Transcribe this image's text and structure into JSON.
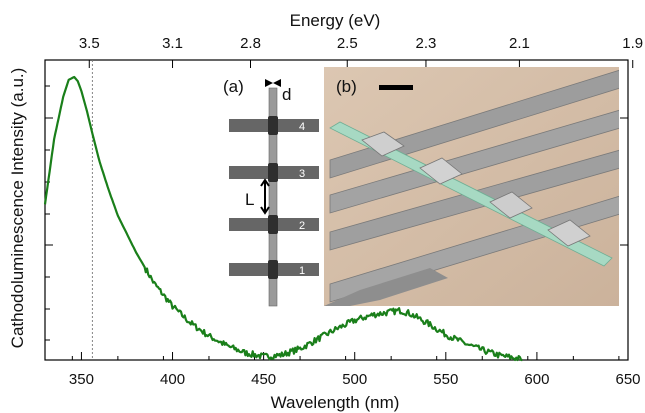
{
  "chart_data": {
    "type": "line",
    "xlabel": "Wavelength (nm)",
    "ylabel": "Cathodoluminescence Intensity (a.u.)",
    "top_axis_label": "Energy (eV)",
    "xlim": [
      330,
      650
    ],
    "ylim": [
      0,
      1.06
    ],
    "x_ticks": [
      350,
      400,
      450,
      500,
      550,
      600,
      650
    ],
    "top_ticks": [
      "3.5",
      "3.1",
      "2.8",
      "2.5",
      "2.3",
      "2.1",
      "1.9"
    ],
    "top_tick_wavelengths": [
      354.3,
      400.0,
      442.8,
      495.9,
      539.1,
      590.4,
      652.6
    ],
    "reference_line_x": 356,
    "line_color": "#1a7f1a",
    "series": [
      {
        "x": [
          330,
          335,
          340,
          343,
          346,
          348,
          350,
          353,
          356,
          360,
          365,
          370,
          380,
          390,
          400,
          410,
          420,
          430,
          440,
          450,
          460,
          470,
          480,
          490,
          500,
          510,
          520,
          525,
          530,
          540,
          550,
          560,
          570,
          580,
          590,
          592
        ],
        "y": [
          0.55,
          0.78,
          0.93,
          0.99,
          1.0,
          0.985,
          0.95,
          0.88,
          0.8,
          0.7,
          0.6,
          0.51,
          0.38,
          0.27,
          0.19,
          0.13,
          0.085,
          0.05,
          0.025,
          0.012,
          0.018,
          0.04,
          0.075,
          0.11,
          0.14,
          0.16,
          0.17,
          0.175,
          0.165,
          0.13,
          0.09,
          0.06,
          0.035,
          0.015,
          0.005,
          0.0
        ]
      }
    ]
  },
  "inset_a": {
    "label": "(a)",
    "gap_label": "d",
    "spacing_label": "L",
    "contact_numbers": [
      "4",
      "3",
      "2",
      "1"
    ]
  },
  "inset_b": {
    "label": "(b)"
  }
}
